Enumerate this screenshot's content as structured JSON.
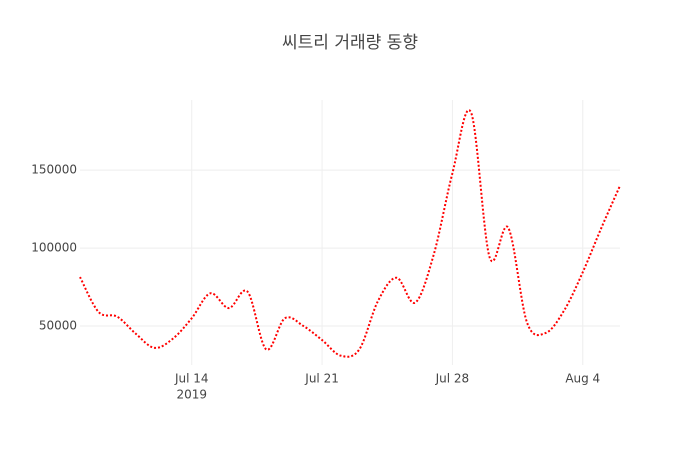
{
  "chart_data": {
    "type": "line",
    "title": "씨트리 거래량 동향",
    "x": [
      "2019-07-08",
      "2019-07-09",
      "2019-07-10",
      "2019-07-11",
      "2019-07-12",
      "2019-07-13",
      "2019-07-14",
      "2019-07-15",
      "2019-07-16",
      "2019-07-17",
      "2019-07-18",
      "2019-07-19",
      "2019-07-20",
      "2019-07-21",
      "2019-07-22",
      "2019-07-23",
      "2019-07-24",
      "2019-07-25",
      "2019-07-26",
      "2019-07-27",
      "2019-07-28",
      "2019-07-29",
      "2019-07-30",
      "2019-07-31",
      "2019-08-01",
      "2019-08-02",
      "2019-08-03",
      "2019-08-04",
      "2019-08-05",
      "2019-08-06"
    ],
    "series": [
      {
        "name": "거래량",
        "color": "#ff0000",
        "values": [
          81400,
          59000,
          56000,
          45000,
          36000,
          42000,
          55000,
          71000,
          61500,
          72000,
          35000,
          55000,
          50000,
          41000,
          31000,
          35000,
          66000,
          81000,
          65000,
          96000,
          148000,
          187000,
          94000,
          113000,
          52500,
          45500,
          60000,
          84500,
          113000,
          140000
        ]
      }
    ],
    "xlim": [
      "2019-07-08",
      "2019-08-06"
    ],
    "xticks": [
      {
        "value": "2019-07-14",
        "label": "Jul 14"
      },
      {
        "value": "2019-07-21",
        "label": "Jul 21"
      },
      {
        "value": "2019-07-28",
        "label": "Jul 28"
      },
      {
        "value": "2019-08-04",
        "label": "Aug 4"
      }
    ],
    "x_year_label": "2019",
    "ylim": [
      25000,
      195000
    ],
    "yticks": [
      50000,
      100000,
      150000
    ],
    "grid": true
  }
}
